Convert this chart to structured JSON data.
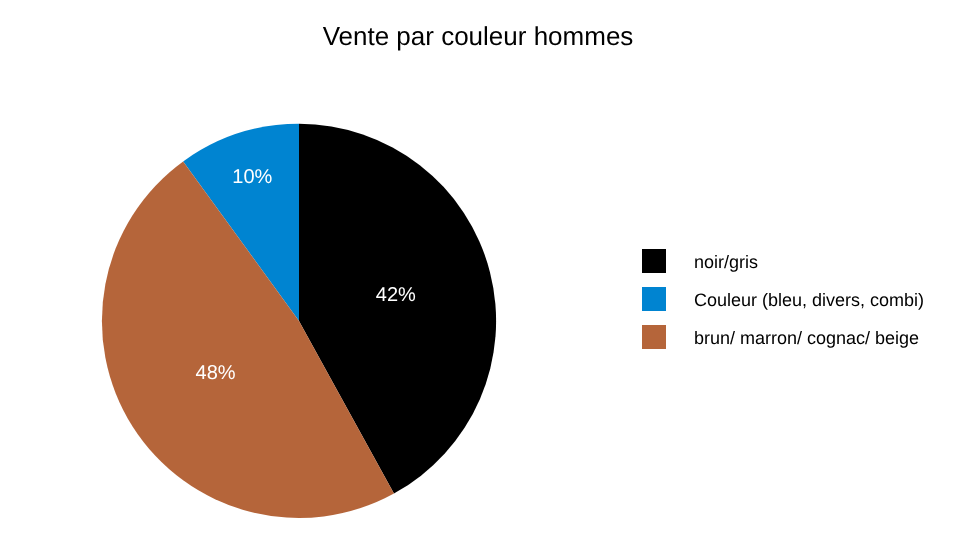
{
  "chart_data": {
    "type": "pie",
    "title": "Vente par couleur hommes",
    "categories": [
      "noir/gris",
      "Couleur (bleu, divers, combi)",
      "brun/ marron/ cognac/ beige"
    ],
    "values": [
      42,
      10,
      48
    ],
    "colors": [
      "#000000",
      "#0084d1",
      "#b5653a"
    ],
    "value_labels": [
      "42%",
      "10%",
      "48%"
    ],
    "legend": "right"
  }
}
